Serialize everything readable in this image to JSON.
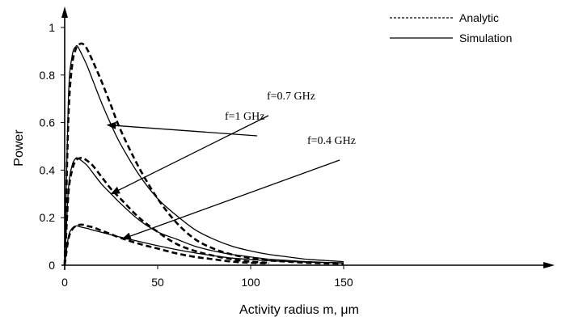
{
  "chart_data": {
    "type": "line",
    "title": "",
    "xlabel": "Activity radius m, μm",
    "ylabel": "Power",
    "xlim": [
      0,
      158
    ],
    "ylim": [
      0,
      1.05
    ],
    "x_ticks": [
      "0",
      "50",
      "100",
      "150"
    ],
    "y_ticks": [
      "0",
      "0.2",
      "0.4",
      "0.6",
      "0.8",
      "1"
    ],
    "grid": false,
    "legend_position": "top-right",
    "legend": [
      {
        "label": "Analytic",
        "style": "dashed"
      },
      {
        "label": "Simulation",
        "style": "solid"
      }
    ],
    "annotations": [
      {
        "text": "f=1 GHz",
        "arrow_to": [
          23,
          0.59
        ]
      },
      {
        "text": "f=0.7 GHz",
        "arrow_to": [
          25,
          0.3
        ]
      },
      {
        "text": "f=0.4 GHz",
        "arrow_to": [
          31,
          0.11
        ]
      }
    ],
    "series": [
      {
        "name": "Analytic",
        "group": "f=1 GHz",
        "style": "dashed",
        "x": [
          0,
          2,
          4,
          6,
          8,
          10,
          12,
          15,
          20,
          25,
          30,
          40,
          50,
          60,
          70,
          80,
          90,
          100,
          110,
          120,
          130,
          140,
          150
        ],
        "y": [
          0,
          0.62,
          0.84,
          0.91,
          0.93,
          0.93,
          0.91,
          0.86,
          0.77,
          0.67,
          0.57,
          0.41,
          0.28,
          0.18,
          0.11,
          0.07,
          0.045,
          0.03,
          0.02,
          0.015,
          0.01,
          0.008,
          0.006
        ]
      },
      {
        "name": "Simulation",
        "group": "f=1 GHz",
        "style": "solid",
        "x": [
          0,
          2,
          4,
          6,
          7,
          9,
          12,
          15,
          20,
          25,
          30,
          40,
          50,
          60,
          70,
          80,
          90,
          100,
          110,
          120,
          130,
          140,
          150
        ],
        "y": [
          0,
          0.7,
          0.88,
          0.92,
          0.92,
          0.89,
          0.84,
          0.78,
          0.68,
          0.59,
          0.51,
          0.38,
          0.28,
          0.21,
          0.15,
          0.11,
          0.08,
          0.06,
          0.045,
          0.035,
          0.025,
          0.02,
          0.015
        ]
      },
      {
        "name": "Analytic",
        "group": "f=0.7 GHz",
        "style": "dashed",
        "x": [
          0,
          2,
          4,
          6,
          8,
          10,
          12,
          15,
          20,
          25,
          30,
          40,
          50,
          60,
          70,
          80,
          90,
          100,
          110
        ],
        "y": [
          0,
          0.3,
          0.4,
          0.44,
          0.45,
          0.45,
          0.44,
          0.42,
          0.37,
          0.32,
          0.28,
          0.2,
          0.14,
          0.09,
          0.06,
          0.04,
          0.025,
          0.015,
          0.01
        ]
      },
      {
        "name": "Simulation",
        "group": "f=0.7 GHz",
        "style": "solid",
        "x": [
          0,
          2,
          4,
          6,
          7,
          9,
          12,
          15,
          20,
          25,
          30,
          40,
          50,
          60,
          70,
          80,
          90,
          100,
          110,
          120,
          130,
          140,
          150
        ],
        "y": [
          0,
          0.32,
          0.42,
          0.45,
          0.45,
          0.44,
          0.42,
          0.39,
          0.34,
          0.3,
          0.26,
          0.19,
          0.14,
          0.11,
          0.08,
          0.06,
          0.045,
          0.035,
          0.025,
          0.02,
          0.015,
          0.012,
          0.01
        ]
      },
      {
        "name": "Analytic",
        "group": "f=0.4 GHz",
        "style": "dashed",
        "x": [
          0,
          2,
          4,
          6,
          8,
          10,
          12,
          15,
          20,
          25,
          30,
          40,
          50,
          60,
          70,
          80,
          90,
          100,
          110
        ],
        "y": [
          0,
          0.11,
          0.15,
          0.165,
          0.17,
          0.17,
          0.165,
          0.16,
          0.145,
          0.13,
          0.115,
          0.09,
          0.07,
          0.05,
          0.035,
          0.025,
          0.015,
          0.01,
          0.008
        ]
      },
      {
        "name": "Simulation",
        "group": "f=0.4 GHz",
        "style": "solid",
        "x": [
          0,
          2,
          4,
          6,
          7,
          9,
          12,
          15,
          20,
          25,
          30,
          40,
          50,
          60,
          70,
          80,
          90,
          100,
          110,
          120,
          130,
          140,
          150
        ],
        "y": [
          0,
          0.12,
          0.155,
          0.165,
          0.165,
          0.16,
          0.155,
          0.148,
          0.138,
          0.128,
          0.118,
          0.1,
          0.082,
          0.066,
          0.052,
          0.04,
          0.03,
          0.024,
          0.019,
          0.016,
          0.013,
          0.011,
          0.009
        ]
      }
    ]
  }
}
